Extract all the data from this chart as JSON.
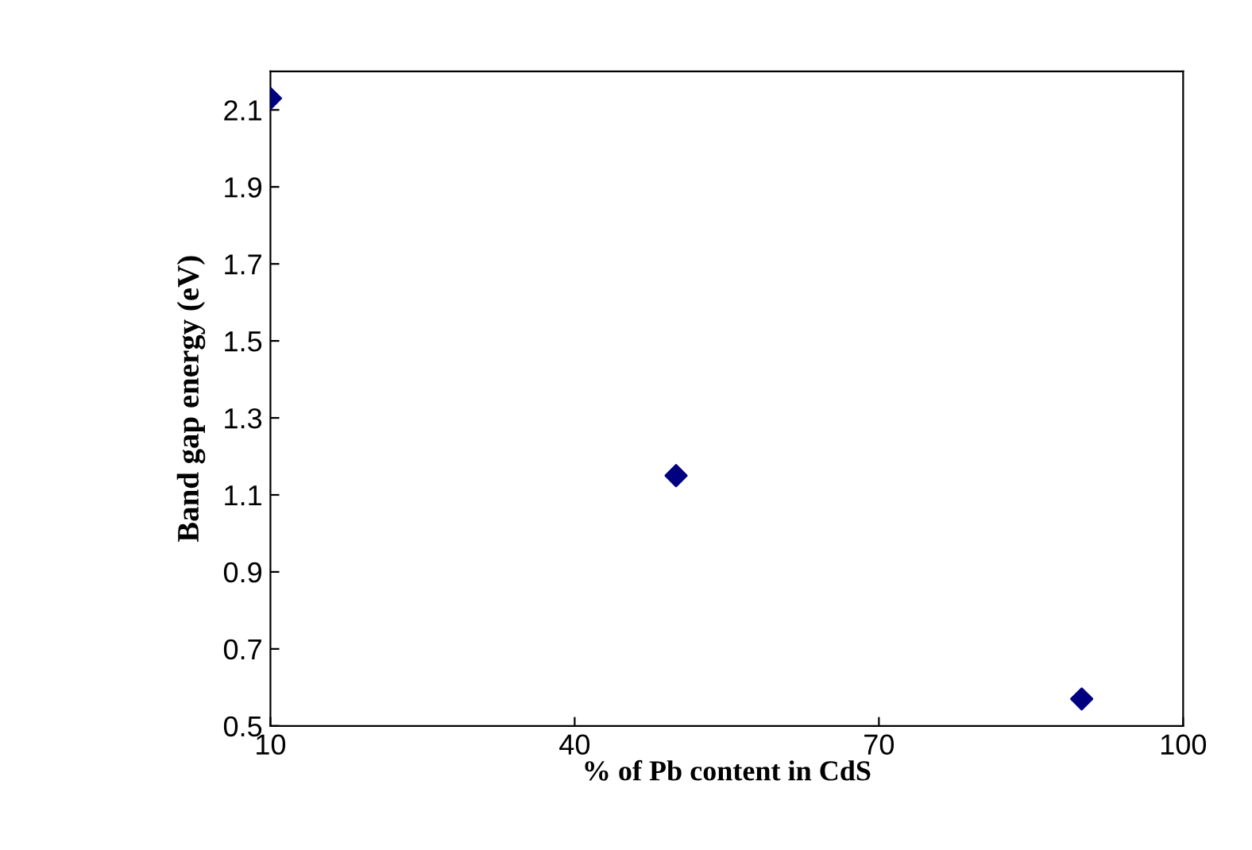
{
  "chart_data": {
    "type": "scatter",
    "xlabel": "% of Pb content in CdS",
    "ylabel": "Band gap energy (eV)",
    "x": [
      10,
      50,
      90
    ],
    "series": [
      {
        "color": "#000080",
        "values": [
          2.13,
          1.15,
          0.57
        ]
      }
    ],
    "marker": "diamond",
    "xlim": [
      10,
      100
    ],
    "xticks": [
      10,
      40,
      70,
      100
    ],
    "ylim": [
      0.5,
      2.2
    ],
    "yticks": [
      0.5,
      0.7,
      0.9,
      1.1,
      1.3,
      1.5,
      1.7,
      1.9,
      2.1
    ],
    "grid": false,
    "legend": false
  }
}
